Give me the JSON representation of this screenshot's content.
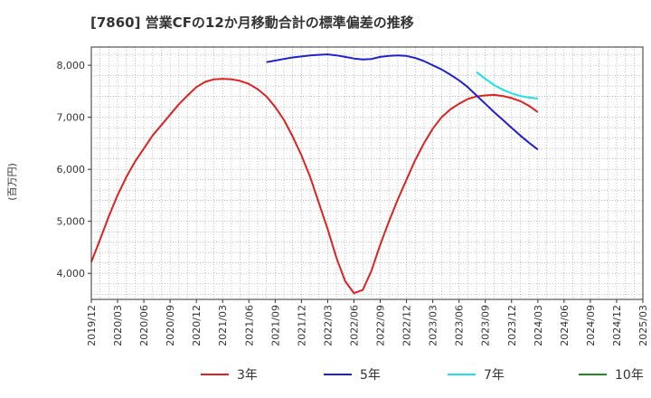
{
  "chart_data": {
    "type": "line",
    "title": "[7860]  営業CFの12か月移動合計の標準偏差の推移",
    "ylabel": "(百万円)",
    "xlabel": "",
    "ylim": [
      3500,
      8350
    ],
    "yticks": [
      4000,
      5000,
      6000,
      7000,
      8000
    ],
    "ytick_labels": [
      "4,000",
      "5,000",
      "6,000",
      "7,000",
      "8,000"
    ],
    "x_ticks": [
      "2019/12",
      "2020/03",
      "2020/06",
      "2020/09",
      "2020/12",
      "2021/03",
      "2021/06",
      "2021/09",
      "2021/12",
      "2022/03",
      "2022/06",
      "2022/09",
      "2022/12",
      "2023/03",
      "2023/06",
      "2023/09",
      "2023/12",
      "2024/03",
      "2024/06",
      "2024/09",
      "2024/12",
      "2025/03"
    ],
    "grid": true,
    "legend_position": "bottom",
    "series": [
      {
        "name": "3年",
        "color": "#dd2222",
        "x": [
          "2019/12",
          "2020/01",
          "2020/02",
          "2020/03",
          "2020/04",
          "2020/05",
          "2020/06",
          "2020/07",
          "2020/08",
          "2020/09",
          "2020/10",
          "2020/11",
          "2020/12",
          "2021/01",
          "2021/02",
          "2021/03",
          "2021/04",
          "2021/05",
          "2021/06",
          "2021/07",
          "2021/08",
          "2021/09",
          "2021/10",
          "2021/11",
          "2021/12",
          "2022/01",
          "2022/02",
          "2022/03",
          "2022/04",
          "2022/05",
          "2022/06",
          "2022/07",
          "2022/08",
          "2022/09",
          "2022/10",
          "2022/11",
          "2022/12",
          "2023/01",
          "2023/02",
          "2023/03",
          "2023/04",
          "2023/05",
          "2023/06",
          "2023/07",
          "2023/08",
          "2023/09",
          "2023/10",
          "2023/11",
          "2023/12",
          "2024/01",
          "2024/02",
          "2024/03"
        ],
        "values": [
          4220,
          4650,
          5100,
          5500,
          5850,
          6150,
          6400,
          6650,
          6850,
          7050,
          7250,
          7420,
          7580,
          7680,
          7730,
          7740,
          7730,
          7700,
          7640,
          7540,
          7400,
          7200,
          6950,
          6630,
          6270,
          5850,
          5350,
          4850,
          4300,
          3850,
          3620,
          3680,
          4050,
          4550,
          5000,
          5420,
          5800,
          6180,
          6500,
          6780,
          7000,
          7150,
          7260,
          7350,
          7400,
          7420,
          7430,
          7410,
          7370,
          7310,
          7220,
          7100
        ]
      },
      {
        "name": "5年",
        "color": "#1f22cc",
        "x": [
          "2021/08",
          "2021/09",
          "2021/10",
          "2021/11",
          "2021/12",
          "2022/01",
          "2022/02",
          "2022/03",
          "2022/04",
          "2022/05",
          "2022/06",
          "2022/07",
          "2022/08",
          "2022/09",
          "2022/10",
          "2022/11",
          "2022/12",
          "2023/01",
          "2023/02",
          "2023/03",
          "2023/04",
          "2023/05",
          "2023/06",
          "2023/07",
          "2023/08",
          "2023/09",
          "2023/10",
          "2023/11",
          "2023/12",
          "2024/01",
          "2024/02",
          "2024/03"
        ],
        "values": [
          8060,
          8090,
          8120,
          8150,
          8170,
          8190,
          8200,
          8210,
          8190,
          8160,
          8130,
          8110,
          8120,
          8160,
          8180,
          8190,
          8180,
          8140,
          8080,
          8000,
          7920,
          7820,
          7710,
          7580,
          7420,
          7260,
          7100,
          6950,
          6800,
          6650,
          6510,
          6380
        ]
      },
      {
        "name": "7年",
        "color": "#22ddee",
        "x": [
          "2023/08",
          "2023/09",
          "2023/10",
          "2023/11",
          "2023/12",
          "2024/01",
          "2024/02",
          "2024/03"
        ],
        "values": [
          7870,
          7740,
          7620,
          7530,
          7460,
          7410,
          7380,
          7360
        ]
      },
      {
        "name": "10年",
        "color": "#228822",
        "x": [],
        "values": []
      }
    ]
  }
}
